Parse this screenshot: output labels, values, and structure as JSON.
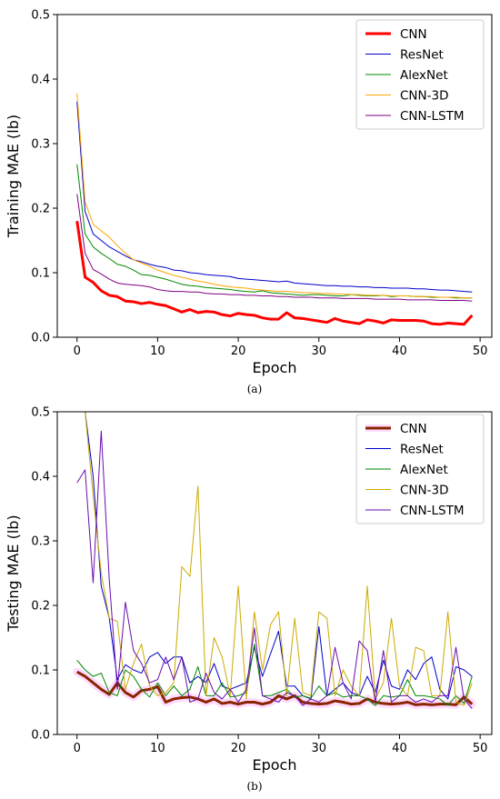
{
  "chart_data": [
    {
      "type": "line",
      "caption": "(a)",
      "xlabel": "Epoch",
      "ylabel": "Training MAE (lb)",
      "xlim": [
        -2.45,
        51.45
      ],
      "ylim": [
        0,
        0.5
      ],
      "xticks": [
        0,
        10,
        20,
        30,
        40,
        50
      ],
      "yticks": [
        0.0,
        0.1,
        0.2,
        0.3,
        0.4,
        0.5
      ],
      "grid": false,
      "legend_position": "top-right",
      "series": [
        {
          "name": "CNN",
          "color": "#ff0000",
          "width": 3,
          "highlight": false,
          "values": [
            0.18,
            0.093,
            0.085,
            0.072,
            0.065,
            0.063,
            0.056,
            0.055,
            0.052,
            0.054,
            0.051,
            0.049,
            0.044,
            0.039,
            0.043,
            0.038,
            0.04,
            0.039,
            0.035,
            0.033,
            0.037,
            0.035,
            0.034,
            0.03,
            0.028,
            0.028,
            0.038,
            0.03,
            0.029,
            0.027,
            0.025,
            0.023,
            0.029,
            0.025,
            0.023,
            0.021,
            0.027,
            0.025,
            0.022,
            0.027,
            0.026,
            0.026,
            0.026,
            0.025,
            0.021,
            0.02,
            0.022,
            0.021,
            0.02,
            0.034
          ]
        },
        {
          "name": "ResNet",
          "color": "#0000cc",
          "width": 1,
          "highlight": false,
          "values": [
            0.365,
            0.195,
            0.16,
            0.15,
            0.14,
            0.133,
            0.126,
            0.12,
            0.117,
            0.113,
            0.11,
            0.108,
            0.104,
            0.103,
            0.1,
            0.099,
            0.097,
            0.096,
            0.095,
            0.094,
            0.091,
            0.09,
            0.089,
            0.088,
            0.087,
            0.086,
            0.087,
            0.084,
            0.083,
            0.082,
            0.081,
            0.08,
            0.08,
            0.079,
            0.079,
            0.078,
            0.078,
            0.077,
            0.077,
            0.076,
            0.076,
            0.076,
            0.075,
            0.075,
            0.074,
            0.073,
            0.073,
            0.072,
            0.071,
            0.07
          ]
        },
        {
          "name": "AlexNet",
          "color": "#008800",
          "width": 1,
          "highlight": false,
          "values": [
            0.268,
            0.16,
            0.14,
            0.13,
            0.122,
            0.113,
            0.11,
            0.104,
            0.097,
            0.096,
            0.093,
            0.09,
            0.086,
            0.082,
            0.08,
            0.079,
            0.077,
            0.076,
            0.075,
            0.074,
            0.072,
            0.071,
            0.07,
            0.072,
            0.069,
            0.068,
            0.067,
            0.066,
            0.065,
            0.066,
            0.066,
            0.065,
            0.064,
            0.064,
            0.066,
            0.065,
            0.064,
            0.064,
            0.065,
            0.063,
            0.064,
            0.064,
            0.063,
            0.063,
            0.062,
            0.062,
            0.062,
            0.061,
            0.061,
            0.061
          ]
        },
        {
          "name": "CNN-3D",
          "color": "#ffa500",
          "width": 1,
          "highlight": false,
          "values": [
            0.378,
            0.21,
            0.175,
            0.165,
            0.155,
            0.142,
            0.13,
            0.12,
            0.115,
            0.11,
            0.104,
            0.1,
            0.096,
            0.093,
            0.09,
            0.087,
            0.085,
            0.082,
            0.08,
            0.078,
            0.077,
            0.076,
            0.074,
            0.073,
            0.072,
            0.071,
            0.071,
            0.07,
            0.069,
            0.069,
            0.068,
            0.068,
            0.067,
            0.067,
            0.066,
            0.066,
            0.065,
            0.065,
            0.065,
            0.064,
            0.064,
            0.064,
            0.063,
            0.063,
            0.063,
            0.062,
            0.062,
            0.062,
            0.061,
            0.061
          ]
        },
        {
          "name": "CNN-LSTM",
          "color": "#800080",
          "width": 1,
          "highlight": false,
          "values": [
            0.222,
            0.13,
            0.105,
            0.098,
            0.09,
            0.084,
            0.082,
            0.081,
            0.08,
            0.078,
            0.074,
            0.072,
            0.071,
            0.071,
            0.07,
            0.07,
            0.068,
            0.067,
            0.067,
            0.066,
            0.066,
            0.065,
            0.065,
            0.064,
            0.064,
            0.063,
            0.063,
            0.062,
            0.062,
            0.062,
            0.061,
            0.061,
            0.061,
            0.06,
            0.06,
            0.06,
            0.06,
            0.059,
            0.059,
            0.059,
            0.059,
            0.058,
            0.058,
            0.058,
            0.058,
            0.057,
            0.057,
            0.057,
            0.057,
            0.056
          ]
        }
      ]
    },
    {
      "type": "line",
      "caption": "(b)",
      "xlabel": "Epoch",
      "ylabel": "Testing MAE (lb)",
      "xlim": [
        -2.45,
        51.45
      ],
      "ylim": [
        0,
        0.5
      ],
      "xticks": [
        0,
        10,
        20,
        30,
        40,
        50
      ],
      "yticks": [
        0.0,
        0.1,
        0.2,
        0.3,
        0.4,
        0.5
      ],
      "grid": false,
      "legend_position": "top-right",
      "series": [
        {
          "name": "CNN",
          "color": "#8b2500",
          "width": 3,
          "highlight": true,
          "values": [
            0.097,
            0.09,
            0.08,
            0.07,
            0.062,
            0.08,
            0.065,
            0.058,
            0.068,
            0.07,
            0.074,
            0.05,
            0.055,
            0.057,
            0.058,
            0.055,
            0.05,
            0.055,
            0.048,
            0.05,
            0.047,
            0.05,
            0.05,
            0.047,
            0.05,
            0.06,
            0.055,
            0.06,
            0.05,
            0.048,
            0.047,
            0.048,
            0.052,
            0.05,
            0.047,
            0.048,
            0.055,
            0.05,
            0.048,
            0.047,
            0.048,
            0.05,
            0.046,
            0.047,
            0.046,
            0.047,
            0.047,
            0.046,
            0.058,
            0.047
          ]
        },
        {
          "name": "ResNet",
          "color": "#0000cc",
          "width": 1,
          "highlight": false,
          "values": [
            0.5,
            0.5,
            0.4,
            0.23,
            0.18,
            0.085,
            0.108,
            0.1,
            0.095,
            0.12,
            0.127,
            0.11,
            0.12,
            0.12,
            0.08,
            0.09,
            0.08,
            0.11,
            0.075,
            0.07,
            0.075,
            0.08,
            0.135,
            0.09,
            0.125,
            0.16,
            0.075,
            0.075,
            0.06,
            0.055,
            0.167,
            0.06,
            0.07,
            0.08,
            0.065,
            0.06,
            0.09,
            0.065,
            0.115,
            0.075,
            0.07,
            0.1,
            0.085,
            0.11,
            0.12,
            0.07,
            0.055,
            0.105,
            0.1,
            0.09
          ]
        },
        {
          "name": "AlexNet",
          "color": "#008800",
          "width": 1,
          "highlight": false,
          "values": [
            0.115,
            0.1,
            0.09,
            0.095,
            0.065,
            0.06,
            0.1,
            0.09,
            0.07,
            0.058,
            0.08,
            0.06,
            0.075,
            0.06,
            0.07,
            0.105,
            0.06,
            0.06,
            0.08,
            0.058,
            0.06,
            0.065,
            0.14,
            0.06,
            0.06,
            0.065,
            0.07,
            0.058,
            0.06,
            0.056,
            0.075,
            0.06,
            0.065,
            0.058,
            0.06,
            0.06,
            0.055,
            0.045,
            0.06,
            0.058,
            0.06,
            0.085,
            0.06,
            0.06,
            0.058,
            0.055,
            0.045,
            0.06,
            0.048,
            0.09
          ]
        },
        {
          "name": "CNN-3D",
          "color": "#ccaa00",
          "width": 1,
          "highlight": false,
          "values": [
            0.5,
            0.5,
            0.37,
            0.25,
            0.18,
            0.175,
            0.07,
            0.11,
            0.14,
            0.075,
            0.06,
            0.065,
            0.08,
            0.26,
            0.245,
            0.385,
            0.06,
            0.15,
            0.12,
            0.06,
            0.23,
            0.055,
            0.19,
            0.1,
            0.17,
            0.19,
            0.06,
            0.18,
            0.065,
            0.06,
            0.19,
            0.18,
            0.06,
            0.1,
            0.075,
            0.06,
            0.23,
            0.055,
            0.08,
            0.18,
            0.075,
            0.06,
            0.135,
            0.13,
            0.06,
            0.06,
            0.19,
            0.05,
            0.045,
            0.08
          ]
        },
        {
          "name": "CNN-LSTM",
          "color": "#6a0dad",
          "width": 1,
          "highlight": false,
          "values": [
            0.39,
            0.41,
            0.235,
            0.47,
            0.24,
            0.07,
            0.205,
            0.13,
            0.11,
            0.08,
            0.085,
            0.12,
            0.085,
            0.12,
            0.05,
            0.055,
            0.095,
            0.065,
            0.055,
            0.07,
            0.05,
            0.07,
            0.165,
            0.06,
            0.055,
            0.05,
            0.065,
            0.06,
            0.045,
            0.055,
            0.05,
            0.06,
            0.135,
            0.08,
            0.055,
            0.145,
            0.13,
            0.05,
            0.13,
            0.05,
            0.06,
            0.06,
            0.05,
            0.055,
            0.05,
            0.06,
            0.06,
            0.135,
            0.055,
            0.04
          ]
        }
      ]
    }
  ]
}
